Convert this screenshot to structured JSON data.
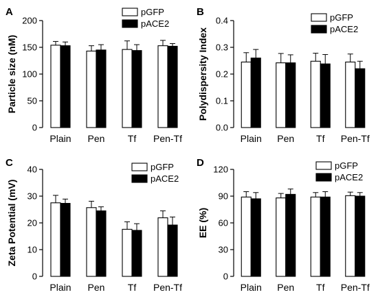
{
  "chart_data": [
    {
      "panel": "A",
      "type": "bar",
      "ylabel": "Particle size (nM)",
      "categories": [
        "Plain",
        "Pen",
        "Tf",
        "Pen-Tf"
      ],
      "ylim": [
        0,
        200
      ],
      "yticks": [
        0,
        50,
        100,
        150,
        200
      ],
      "series": [
        {
          "name": "pGFP",
          "color": "#ffffff",
          "values": [
            154,
            143,
            146,
            153
          ],
          "errors": [
            7,
            10,
            16,
            10
          ]
        },
        {
          "name": "pACE2",
          "color": "#000000",
          "values": [
            153,
            145,
            144,
            152
          ],
          "errors": [
            7,
            10,
            11,
            5
          ]
        }
      ],
      "legend": "top-right",
      "grid": false
    },
    {
      "panel": "B",
      "type": "bar",
      "ylabel": "Polydispersity Index",
      "categories": [
        "Plain",
        "Pen",
        "Tf",
        "Pen-Tf"
      ],
      "ylim": [
        0,
        0.4
      ],
      "yticks": [
        0.0,
        0.1,
        0.2,
        0.3,
        0.4
      ],
      "series": [
        {
          "name": "pGFP",
          "color": "#ffffff",
          "values": [
            0.245,
            0.242,
            0.248,
            0.245
          ],
          "errors": [
            0.035,
            0.035,
            0.03,
            0.03
          ]
        },
        {
          "name": "pACE2",
          "color": "#000000",
          "values": [
            0.26,
            0.242,
            0.238,
            0.22
          ],
          "errors": [
            0.032,
            0.03,
            0.035,
            0.028
          ]
        }
      ],
      "legend": "top-right",
      "grid": false
    },
    {
      "panel": "C",
      "type": "bar",
      "ylabel": "Zeta Potential (mV)",
      "categories": [
        "Plain",
        "Pen",
        "Tf",
        "Pen-Tf"
      ],
      "ylim": [
        0,
        40
      ],
      "yticks": [
        0,
        10,
        20,
        30,
        40
      ],
      "series": [
        {
          "name": "pGFP",
          "color": "#ffffff",
          "values": [
            27.5,
            25.7,
            17.6,
            21.9
          ],
          "errors": [
            2.8,
            2.4,
            2.8,
            2.6
          ]
        },
        {
          "name": "pACE2",
          "color": "#000000",
          "values": [
            27.3,
            24.5,
            17.2,
            19.2
          ],
          "errors": [
            1.6,
            1.5,
            2.5,
            3.0
          ]
        }
      ],
      "legend": "top-right",
      "grid": false
    },
    {
      "panel": "D",
      "type": "bar",
      "ylabel": "EE (%)",
      "categories": [
        "Plain",
        "Pen",
        "Tf",
        "Pen-Tf"
      ],
      "ylim": [
        0,
        120
      ],
      "yticks": [
        0,
        30,
        60,
        90,
        120
      ],
      "series": [
        {
          "name": "pGFP",
          "color": "#ffffff",
          "values": [
            89,
            88,
            89,
            90.5
          ],
          "errors": [
            6,
            5,
            5,
            4
          ]
        },
        {
          "name": "pACE2",
          "color": "#000000",
          "values": [
            87,
            92,
            89,
            90
          ],
          "errors": [
            7,
            6,
            6,
            4
          ]
        }
      ],
      "legend": "top-right",
      "grid": false
    }
  ]
}
